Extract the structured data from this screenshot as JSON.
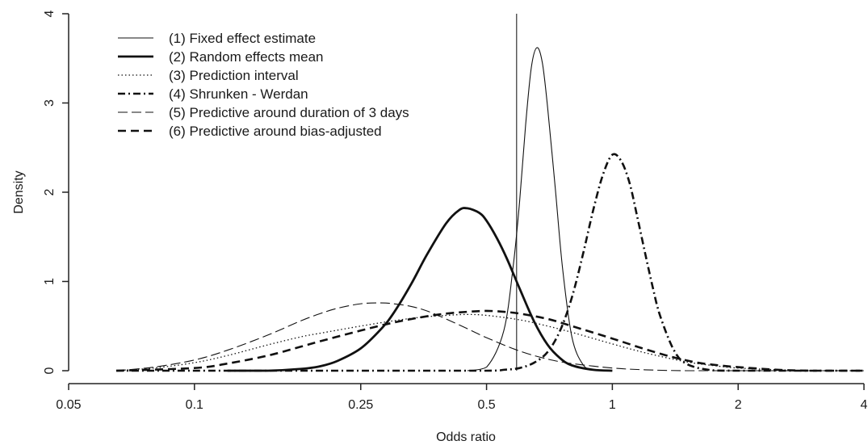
{
  "chart_data": {
    "type": "line",
    "xlabel": "Odds ratio",
    "ylabel": "Density",
    "x_scale": "log",
    "xlim": [
      0.05,
      4
    ],
    "ylim": [
      0,
      4
    ],
    "x_ticks": [
      0.05,
      0.1,
      0.25,
      0.5,
      1,
      2,
      4
    ],
    "x_tick_labels": [
      "0.05",
      "0.1",
      "0.25",
      "0.5",
      "1",
      "2",
      "4"
    ],
    "y_ticks": [
      0,
      1,
      2,
      3,
      4
    ],
    "y_tick_labels": [
      "0",
      "1",
      "2",
      "3",
      "4"
    ],
    "grid": false,
    "legend_position": "top-left",
    "reference_line": {
      "x": 0.59
    },
    "series": [
      {
        "name": "(1) Fixed effect estimate",
        "style": "solid-thin",
        "x": [
          0.45,
          0.5,
          0.55,
          0.58,
          0.6,
          0.62,
          0.64,
          0.66,
          0.68,
          0.7,
          0.73,
          0.76,
          0.8,
          0.85,
          0.9,
          0.95
        ],
        "y": [
          0.0,
          0.04,
          0.45,
          1.2,
          1.9,
          2.75,
          3.4,
          3.62,
          3.45,
          2.95,
          2.05,
          1.15,
          0.38,
          0.07,
          0.01,
          0.0
        ]
      },
      {
        "name": "(2) Random effects mean",
        "style": "solid-thick",
        "x": [
          0.12,
          0.15,
          0.18,
          0.2,
          0.22,
          0.25,
          0.28,
          0.3,
          0.33,
          0.36,
          0.4,
          0.43,
          0.45,
          0.48,
          0.5,
          0.53,
          0.56,
          0.6,
          0.65,
          0.7,
          0.75,
          0.8,
          0.9,
          1.0
        ],
        "y": [
          0.0,
          0.0,
          0.02,
          0.05,
          0.11,
          0.25,
          0.47,
          0.65,
          0.97,
          1.3,
          1.65,
          1.8,
          1.82,
          1.77,
          1.68,
          1.48,
          1.25,
          0.92,
          0.55,
          0.29,
          0.14,
          0.06,
          0.01,
          0.0
        ]
      },
      {
        "name": "(3) Prediction interval",
        "style": "dotted",
        "x": [
          0.065,
          0.08,
          0.1,
          0.12,
          0.15,
          0.18,
          0.2,
          0.25,
          0.3,
          0.35,
          0.4,
          0.45,
          0.5,
          0.6,
          0.7,
          0.8,
          1.0,
          1.2,
          1.5,
          1.8,
          2.0,
          2.5,
          3.0,
          4.0
        ],
        "y": [
          0.0,
          0.03,
          0.09,
          0.17,
          0.29,
          0.38,
          0.42,
          0.5,
          0.56,
          0.6,
          0.62,
          0.63,
          0.62,
          0.57,
          0.5,
          0.43,
          0.3,
          0.2,
          0.1,
          0.05,
          0.03,
          0.01,
          0.0,
          0.0
        ]
      },
      {
        "name": "(4) Shrunken - Werdan",
        "style": "dash-dot",
        "x": [
          0.065,
          0.3,
          0.5,
          0.55,
          0.6,
          0.65,
          0.7,
          0.75,
          0.8,
          0.85,
          0.9,
          0.95,
          1.0,
          1.05,
          1.1,
          1.15,
          1.2,
          1.25,
          1.3,
          1.4,
          1.5,
          1.7,
          2.0,
          4.0
        ],
        "y": [
          0.0,
          0.0,
          0.0,
          0.01,
          0.03,
          0.09,
          0.21,
          0.45,
          0.82,
          1.3,
          1.8,
          2.2,
          2.42,
          2.35,
          2.1,
          1.7,
          1.3,
          0.93,
          0.62,
          0.24,
          0.08,
          0.01,
          0.0,
          0.0
        ]
      },
      {
        "name": "(5) Predictive around duration of 3 days",
        "style": "long-dash-thin",
        "x": [
          0.065,
          0.08,
          0.1,
          0.12,
          0.15,
          0.18,
          0.2,
          0.22,
          0.25,
          0.28,
          0.3,
          0.33,
          0.36,
          0.4,
          0.45,
          0.5,
          0.6,
          0.7,
          0.8,
          1.0,
          1.2,
          1.5,
          2.0,
          4.0
        ],
        "y": [
          0.0,
          0.04,
          0.12,
          0.23,
          0.4,
          0.56,
          0.64,
          0.7,
          0.75,
          0.76,
          0.75,
          0.72,
          0.67,
          0.58,
          0.47,
          0.37,
          0.22,
          0.13,
          0.08,
          0.03,
          0.01,
          0.0,
          0.0,
          0.0
        ]
      },
      {
        "name": "(6) Predictive around bias-adjusted",
        "style": "dashed-thick",
        "x": [
          0.065,
          0.1,
          0.12,
          0.15,
          0.18,
          0.2,
          0.25,
          0.3,
          0.35,
          0.4,
          0.45,
          0.5,
          0.55,
          0.6,
          0.7,
          0.8,
          1.0,
          1.2,
          1.4,
          1.6,
          1.8,
          2.0,
          2.5,
          3.0,
          4.0
        ],
        "y": [
          0.0,
          0.03,
          0.08,
          0.17,
          0.27,
          0.33,
          0.45,
          0.54,
          0.6,
          0.64,
          0.66,
          0.67,
          0.66,
          0.64,
          0.58,
          0.5,
          0.36,
          0.24,
          0.15,
          0.09,
          0.06,
          0.04,
          0.01,
          0.0,
          0.0
        ]
      }
    ]
  }
}
